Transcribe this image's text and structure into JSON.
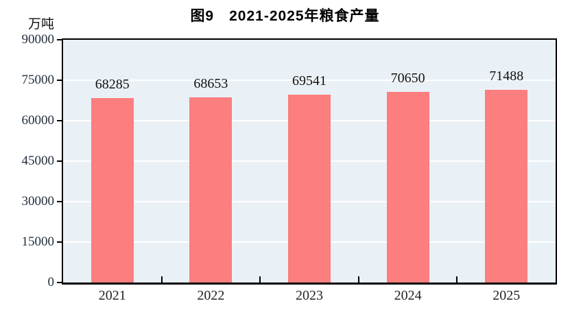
{
  "title": "图9　2021-2025年粮食产量",
  "unit_label": "万吨",
  "colors": {
    "bar": "#FC7E7E",
    "plot_bg": "#EAF1F6",
    "grid": "#FFFFFF",
    "axis": "#000000",
    "ytick_text": "#22303E",
    "value_text": "#111111",
    "xtick_text": "#222222",
    "title_text": "#000000"
  },
  "chart_data": {
    "type": "bar",
    "categories": [
      "2021",
      "2022",
      "2023",
      "2024",
      "2025"
    ],
    "values": [
      68285,
      68653,
      69541,
      70650,
      71488
    ],
    "title": "图9　2021-2025年粮食产量",
    "xlabel": "",
    "ylabel": "万吨",
    "ylim": [
      0,
      90000
    ],
    "ytick_step": 15000,
    "yticks": [
      0,
      15000,
      30000,
      45000,
      60000,
      75000,
      90000
    ],
    "grid": true,
    "legend": false,
    "data_labels_shown": true
  }
}
